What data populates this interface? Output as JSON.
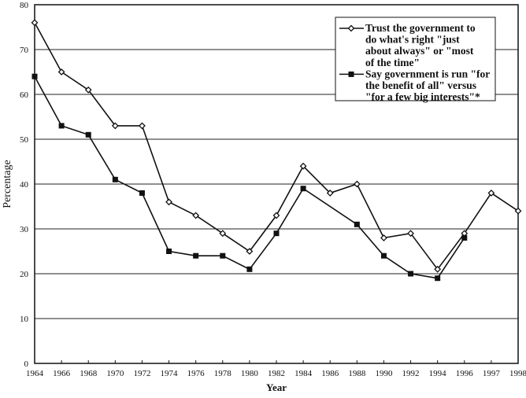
{
  "chart_data": {
    "type": "line",
    "title": "",
    "xlabel": "Year",
    "ylabel": "Percentage",
    "ylim": [
      0,
      80
    ],
    "yticks": [
      0,
      10,
      20,
      30,
      40,
      50,
      60,
      70,
      80
    ],
    "grid": "horizontal",
    "legend_placement": "top-right",
    "categories": [
      "1964",
      "1966",
      "1968",
      "1970",
      "1972",
      "1974",
      "1976",
      "1978",
      "1980",
      "1982",
      "1984",
      "1986",
      "1988",
      "1990",
      "1992",
      "1994",
      "1996",
      "1997",
      "1998"
    ],
    "series": [
      {
        "name": "Trust the government to do what's right \"just about always\" or \"most of the time\"",
        "legend_lines": [
          "Trust the government to",
          "do what's right \"just",
          "about always\" or \"most",
          "of the time\""
        ],
        "marker": "open-diamond",
        "color": "#111111",
        "values": [
          76,
          65,
          61,
          53,
          53,
          36,
          33,
          29,
          25,
          33,
          44,
          38,
          40,
          28,
          29,
          21,
          29,
          38,
          34
        ]
      },
      {
        "name": "Say government is run \"for the benefit of all\" versus \"for a few big interests\"*",
        "legend_lines": [
          "Say government is run \"for",
          "the benefit of all\" versus",
          "\"for a few big interests\"*"
        ],
        "marker": "filled-square",
        "color": "#111111",
        "values": [
          64,
          53,
          51,
          41,
          38,
          25,
          24,
          24,
          21,
          29,
          39,
          null,
          31,
          24,
          20,
          19,
          28,
          null,
          null
        ]
      }
    ]
  }
}
